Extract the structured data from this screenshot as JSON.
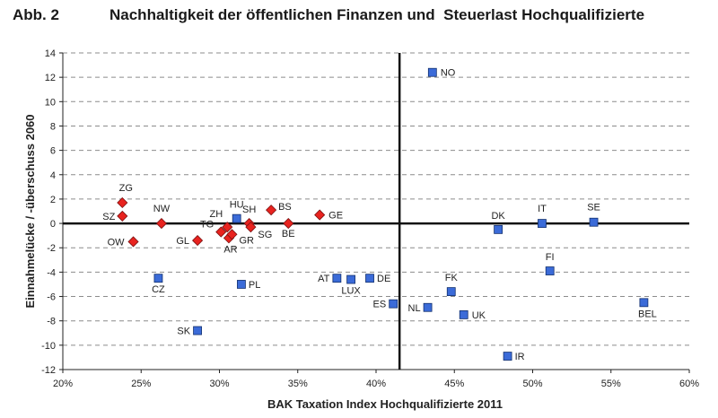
{
  "figure": {
    "label": "Abb. 2",
    "title": "Nachhaltigkeit der öffentlichen Finanzen und  Steuerlast Hochqualifizierte"
  },
  "chart_data": {
    "type": "scatter",
    "title": "Nachhaltigkeit der öffentlichen Finanzen und  Steuerlast Hochqualifizierte",
    "xlabel": "BAK Taxation Index Hochqualifizierte 2011",
    "ylabel": "Einnahmelücke / -überschuss 2060",
    "xlim": [
      20,
      60
    ],
    "ylim": [
      -12,
      14
    ],
    "x_ticks": [
      "20%",
      "25%",
      "30%",
      "35%",
      "40%",
      "45%",
      "50%",
      "55%",
      "60%"
    ],
    "y_ticks": [
      "-12",
      "-10",
      "-8",
      "-6",
      "-4",
      "-2",
      "0",
      "2",
      "4",
      "6",
      "8",
      "10",
      "12",
      "14"
    ],
    "grid": "horizontal dashed",
    "crosshair_x": 41.5,
    "crosshair_y": 0,
    "series": [
      {
        "marker": "diamond",
        "color": "#e8231f",
        "points": [
          {
            "label": "ZG",
            "x": 23.8,
            "y": 1.7
          },
          {
            "label": "SZ",
            "x": 23.8,
            "y": 0.6
          },
          {
            "label": "OW",
            "x": 24.5,
            "y": -1.5
          },
          {
            "label": "NW",
            "x": 26.3,
            "y": 0.0
          },
          {
            "label": "GL",
            "x": 28.6,
            "y": -1.4
          },
          {
            "label": "TG",
            "x": 30.1,
            "y": -0.7
          },
          {
            "label": "ZH",
            "x": 30.5,
            "y": -0.3
          },
          {
            "label": "AR",
            "x": 30.6,
            "y": -1.2
          },
          {
            "label": "GR",
            "x": 30.8,
            "y": -0.9
          },
          {
            "label": "SH",
            "x": 31.9,
            "y": 0.0
          },
          {
            "label": "SG",
            "x": 32.0,
            "y": -0.3
          },
          {
            "label": "BS",
            "x": 33.3,
            "y": 1.1
          },
          {
            "label": "BE",
            "x": 34.4,
            "y": 0.0
          },
          {
            "label": "GE",
            "x": 36.4,
            "y": 0.7
          }
        ]
      },
      {
        "marker": "square",
        "color": "#3b6bd8",
        "points": [
          {
            "label": "HU",
            "x": 31.1,
            "y": 0.4
          },
          {
            "label": "CZ",
            "x": 26.1,
            "y": -4.5
          },
          {
            "label": "PL",
            "x": 31.4,
            "y": -5.0
          },
          {
            "label": "SK",
            "x": 28.6,
            "y": -8.8
          },
          {
            "label": "AT",
            "x": 37.5,
            "y": -4.5
          },
          {
            "label": "LUX",
            "x": 38.4,
            "y": -4.6
          },
          {
            "label": "DE",
            "x": 39.6,
            "y": -4.5
          },
          {
            "label": "ES",
            "x": 41.1,
            "y": -6.6
          },
          {
            "label": "NL",
            "x": 43.3,
            "y": -6.9
          },
          {
            "label": "UK",
            "x": 45.6,
            "y": -7.5
          },
          {
            "label": "FK",
            "x": 44.8,
            "y": -5.6
          },
          {
            "label": "IR",
            "x": 48.4,
            "y": -10.9
          },
          {
            "label": "NO",
            "x": 43.6,
            "y": 12.4
          },
          {
            "label": "DK",
            "x": 47.8,
            "y": -0.5
          },
          {
            "label": "IT",
            "x": 50.6,
            "y": 0.0
          },
          {
            "label": "SE",
            "x": 53.9,
            "y": 0.1
          },
          {
            "label": "FI",
            "x": 51.1,
            "y": -3.9
          },
          {
            "label": "BEL",
            "x": 57.1,
            "y": -6.5
          }
        ]
      }
    ]
  }
}
